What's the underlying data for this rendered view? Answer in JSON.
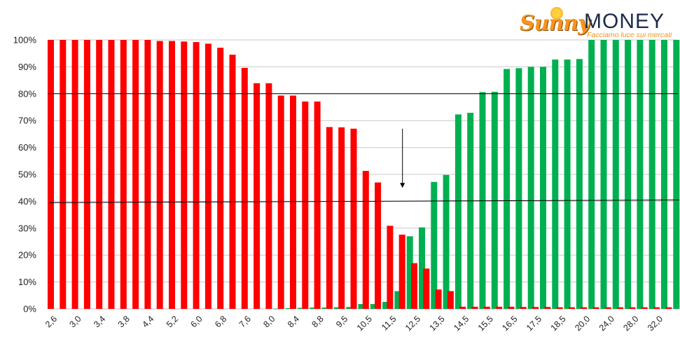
{
  "logo": {
    "brand_part1": "Sunny",
    "brand_part2": "MONEY",
    "tagline": "Facciamo luce sui mercati",
    "brand_colors": {
      "orange": "#f7941d",
      "navy": "#1d2a4a"
    }
  },
  "chart_data": {
    "type": "bar",
    "title": "",
    "xlabel": "",
    "ylabel": "",
    "ylim": [
      0,
      100
    ],
    "yticks": [
      "0%",
      "10%",
      "20%",
      "30%",
      "40%",
      "50%",
      "60%",
      "70%",
      "80%",
      "90%",
      "100%"
    ],
    "grid": true,
    "reference_lines": [
      {
        "label": "",
        "start_value": 39.5,
        "end_value": 40.5
      },
      {
        "label": "",
        "value": 80
      }
    ],
    "annotation": {
      "type": "arrow-down",
      "near_category_index": 29,
      "from_value": 67,
      "to_value": 45
    },
    "categories": [
      "2,6",
      "2,8",
      "3,0",
      "3,2",
      "3,4",
      "3,6",
      "3,8",
      "4,0",
      "4,4",
      "4,8",
      "5,2",
      "5,6",
      "6,0",
      "6,4",
      "6,8",
      "7,2",
      "7,6",
      "7,8",
      "8,0",
      "8,2",
      "8,4",
      "8,6",
      "8,8",
      "9,0",
      "9,5",
      "10,0",
      "10,5",
      "11,0",
      "11,5",
      "12,0",
      "12,5",
      "13,0",
      "13,5",
      "14,0",
      "14,5",
      "15,0",
      "15,5",
      "16,0",
      "16,5",
      "17,0",
      "17,5",
      "18,0",
      "18,5",
      "19,0",
      "20,0",
      "22,0",
      "24,0",
      "26,0",
      "28,0",
      "30,0",
      "32,0",
      "34,0"
    ],
    "visible_tick_labels": [
      "2,6",
      "3,0",
      "3,4",
      "3,8",
      "4,4",
      "5,2",
      "6,0",
      "6,8",
      "7,6",
      "8,0",
      "8,4",
      "8,8",
      "9,5",
      "10,5",
      "11,5",
      "12,5",
      "13,5",
      "14,5",
      "15,5",
      "16,5",
      "17,5",
      "18,5",
      "20,0",
      "24,0",
      "28,0",
      "32,0"
    ],
    "series": [
      {
        "color": "#ff0000",
        "values": [
          100,
          100,
          100,
          100,
          100,
          100,
          100,
          100,
          100,
          99.6,
          99.6,
          99.4,
          99.2,
          98.6,
          97.1,
          94.5,
          89.6,
          83.9,
          83.9,
          79.3,
          79.3,
          77.1,
          77.1,
          67.6,
          67.5,
          67,
          51.3,
          47,
          30.9,
          27.6,
          17,
          15,
          7.2,
          6.6,
          0.8,
          0.8,
          0.8,
          0.8,
          0.8,
          0.7,
          0.7,
          0.7,
          0.6,
          0.6,
          0.6,
          0.6,
          0.6,
          0.6,
          0.6,
          0.6,
          0.6,
          0.6
        ]
      },
      {
        "color": "#00b050",
        "values": [
          0,
          0,
          0,
          0,
          0,
          0,
          0,
          0,
          0,
          0,
          0,
          0,
          0,
          0,
          0,
          0,
          0,
          0,
          0.1,
          0.3,
          0.4,
          0.5,
          0.5,
          0.6,
          0.7,
          1.8,
          1.8,
          2.6,
          6.6,
          27,
          30.3,
          47.2,
          49.8,
          72.3,
          72.9,
          80.6,
          80.7,
          89.2,
          89.5,
          90,
          90,
          92.7,
          92.7,
          92.9,
          100,
          100,
          100,
          100,
          100,
          100,
          100,
          100
        ]
      }
    ]
  }
}
